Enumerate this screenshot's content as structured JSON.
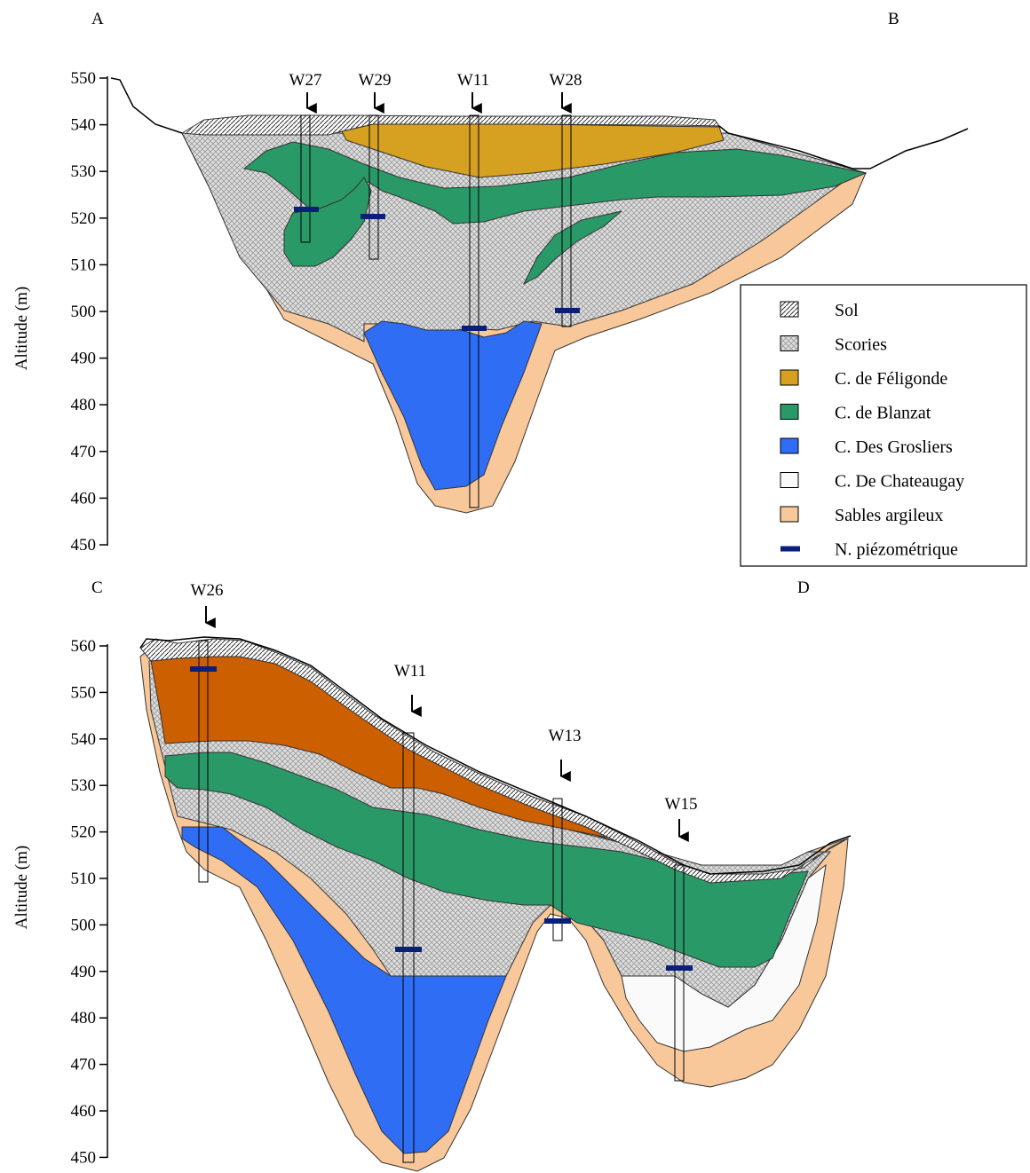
{
  "section_top": {
    "corner_left": "A",
    "corner_right": "B",
    "y_axis_label": "Altitude (m)",
    "ticks": [
      "550",
      "540",
      "530",
      "520",
      "510",
      "500",
      "490",
      "480",
      "470",
      "460",
      "450"
    ],
    "wells": [
      "W27",
      "W29",
      "W11",
      "W28"
    ]
  },
  "section_bottom": {
    "corner_left": "C",
    "corner_right": "D",
    "y_axis_label": "Altitude (m)",
    "ticks": [
      "560",
      "550",
      "540",
      "530",
      "520",
      "510",
      "500",
      "490",
      "480",
      "470",
      "460",
      "450"
    ],
    "wells": [
      "W26",
      "W11",
      "W13",
      "W15"
    ]
  },
  "legend": {
    "items": [
      {
        "label": "Sol",
        "swatch": "sol"
      },
      {
        "label": "Scories",
        "swatch": "scories"
      },
      {
        "label": "C. de Féligonde",
        "swatch": "#d6a020"
      },
      {
        "label": "C. de Blanzat",
        "swatch": "#2a9968"
      },
      {
        "label": "C. Des Grosliers",
        "swatch": "#2f6df5"
      },
      {
        "label": "C. De Chateaugay",
        "swatch": "#fafafa"
      },
      {
        "label": "Sables argileux",
        "swatch": "#f8c89a"
      },
      {
        "label": "N. piézométrique",
        "swatch": "#0a1f7a"
      }
    ]
  },
  "colors": {
    "feligonde": "#d6a020",
    "feligonde_bottom": "#cc5f00",
    "blanzat": "#2a9968",
    "grosliers": "#2f6df5",
    "chateaugay": "#fafafa",
    "sables": "#f8c89a",
    "piezo": "#0a1f7a"
  }
}
